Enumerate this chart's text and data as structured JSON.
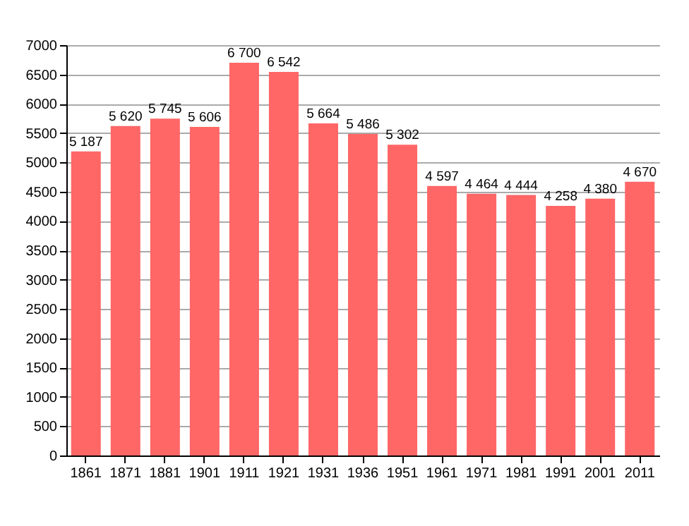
{
  "chart_data": {
    "type": "bar",
    "categories": [
      "1861",
      "1871",
      "1881",
      "1901",
      "1911",
      "1921",
      "1931",
      "1936",
      "1951",
      "1961",
      "1971",
      "1981",
      "1991",
      "2001",
      "2011"
    ],
    "values": [
      5187,
      5620,
      5745,
      5606,
      6700,
      6542,
      5664,
      5486,
      5302,
      4597,
      4464,
      4444,
      4258,
      4380,
      4670
    ],
    "value_labels": [
      "5 187",
      "5 620",
      "5 745",
      "5 606",
      "6 700",
      "6 542",
      "5 664",
      "5 486",
      "5 302",
      "4 597",
      "4 464",
      "4 444",
      "4 258",
      "4 380",
      "4 670"
    ],
    "color": "#ff6666",
    "ylim": [
      0,
      7000
    ],
    "yticks": [
      0,
      500,
      1000,
      1500,
      2000,
      2500,
      3000,
      3500,
      4000,
      4500,
      5000,
      5500,
      6000,
      6500,
      7000
    ],
    "grid": "y"
  }
}
